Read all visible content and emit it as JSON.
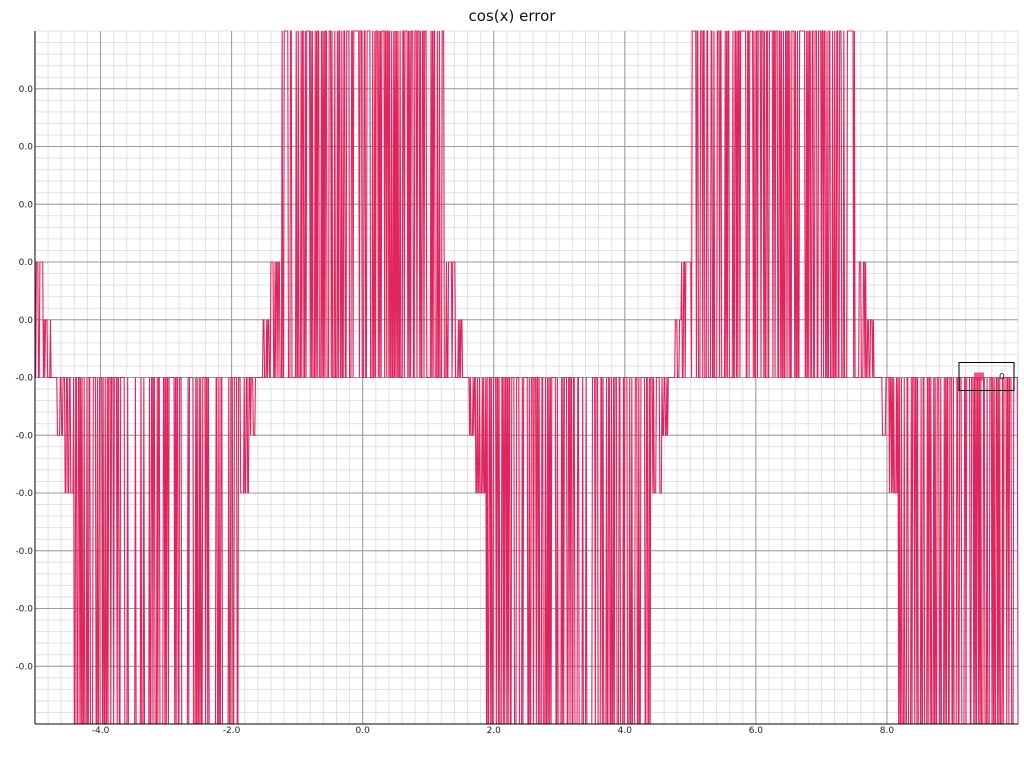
{
  "chart_data": {
    "type": "line",
    "title": "cos(x) error",
    "xlabel": "",
    "ylabel": "",
    "xlim": [
      -5.0,
      10.0
    ],
    "ylim": [
      -6.0,
      6.0
    ],
    "grid": true,
    "minor_grid": true,
    "legend_position": "right",
    "x_ticks": [
      {
        "value": -4.0,
        "label": "-4.0"
      },
      {
        "value": -2.0,
        "label": "-2.0"
      },
      {
        "value": 0.0,
        "label": "0.0"
      },
      {
        "value": 2.0,
        "label": "2.0"
      },
      {
        "value": 4.0,
        "label": "4.0"
      },
      {
        "value": 6.0,
        "label": "6.0"
      },
      {
        "value": 8.0,
        "label": "8.0"
      }
    ],
    "y_ticks": [
      {
        "value": 5,
        "label": "0.0"
      },
      {
        "value": 4,
        "label": "0.0"
      },
      {
        "value": 3,
        "label": "0.0"
      },
      {
        "value": 2,
        "label": "0.0"
      },
      {
        "value": 1,
        "label": "0.0"
      },
      {
        "value": 0,
        "label": "-0.0"
      },
      {
        "value": -1,
        "label": "-0.0"
      },
      {
        "value": -2,
        "label": "-0.0"
      },
      {
        "value": -3,
        "label": "-0.0"
      },
      {
        "value": -4,
        "label": "-0.0"
      },
      {
        "value": -5,
        "label": "-0.0"
      }
    ],
    "series": [
      {
        "name": "0",
        "color": "#e0245e",
        "function": "quantized error of cos(x)",
        "x_start": -5.0,
        "x_end": 10.0,
        "samples": 1400
      }
    ]
  }
}
